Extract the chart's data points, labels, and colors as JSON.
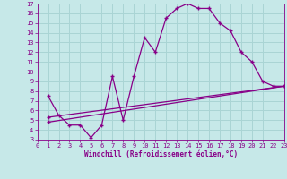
{
  "xlabel": "Windchill (Refroidissement éolien,°C)",
  "xlim": [
    0,
    23
  ],
  "ylim": [
    3,
    17
  ],
  "xticks": [
    0,
    1,
    2,
    3,
    4,
    5,
    6,
    7,
    8,
    9,
    10,
    11,
    12,
    13,
    14,
    15,
    16,
    17,
    18,
    19,
    20,
    21,
    22,
    23
  ],
  "yticks": [
    3,
    4,
    5,
    6,
    7,
    8,
    9,
    10,
    11,
    12,
    13,
    14,
    15,
    16,
    17
  ],
  "bg_color": "#c6e8e8",
  "grid_color": "#aad4d4",
  "line_color": "#880088",
  "line1_x": [
    1,
    2,
    3,
    4,
    5,
    6,
    7,
    8,
    9,
    10,
    11,
    12,
    13,
    14,
    15,
    16,
    17,
    18,
    19,
    20,
    21,
    22,
    23
  ],
  "line1_y": [
    7.5,
    5.5,
    4.5,
    4.5,
    3.2,
    4.5,
    9.5,
    5.0,
    9.5,
    13.5,
    12.0,
    15.5,
    16.5,
    17.0,
    16.5,
    16.5,
    15.0,
    14.2,
    12.0,
    11.0,
    9.0,
    8.5,
    8.5
  ],
  "line2_x": [
    1,
    23
  ],
  "line2_y": [
    4.8,
    8.5
  ],
  "line3_x": [
    1,
    23
  ],
  "line3_y": [
    5.3,
    8.5
  ],
  "marker": "+"
}
